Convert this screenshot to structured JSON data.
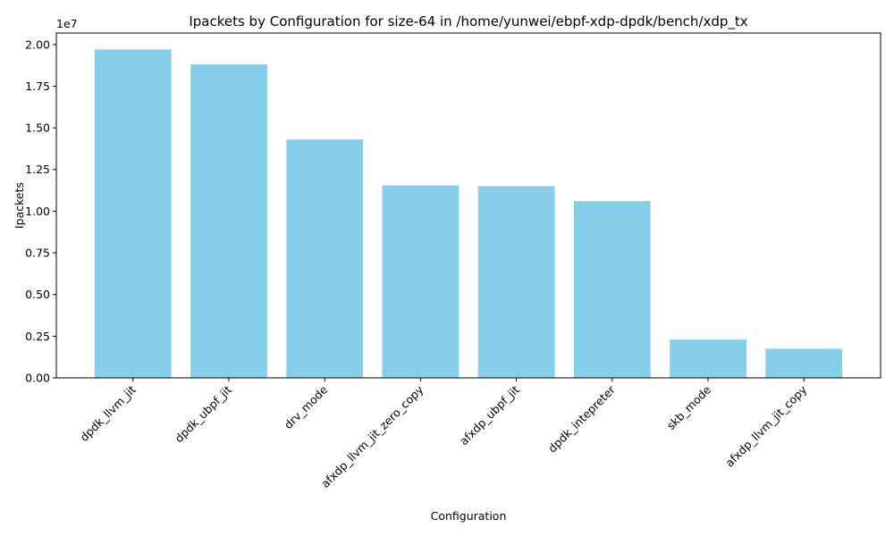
{
  "chart_data": {
    "type": "bar",
    "title": "Ipackets by Configuration for size-64 in /home/yunwei/ebpf-xdp-dpdk/bench/xdp_tx",
    "xlabel": "Configuration",
    "ylabel": "Ipackets",
    "offset_label": "1e7",
    "categories": [
      "dpdk_llvm_jit",
      "dpdk_ubpf_jit",
      "drv_mode",
      "afxdp_llvm_jit_zero_copy",
      "afxdp_ubpf_jit",
      "dpdk_intepreter",
      "skb_mode",
      "afxdp_llvm_jit_copy"
    ],
    "values": [
      19700000,
      18800000,
      14300000,
      11550000,
      11500000,
      10600000,
      2300000,
      1750000
    ],
    "yticks": [
      0,
      2500000,
      5000000,
      7500000,
      10000000,
      12500000,
      15000000,
      17500000,
      20000000
    ],
    "ytick_labels": [
      "0.00",
      "0.25",
      "0.50",
      "0.75",
      "1.00",
      "1.25",
      "1.50",
      "1.75",
      "2.00"
    ],
    "ylim": [
      0,
      20685000
    ],
    "bar_color": "#87ceeb",
    "grid": false,
    "legend": "none"
  }
}
